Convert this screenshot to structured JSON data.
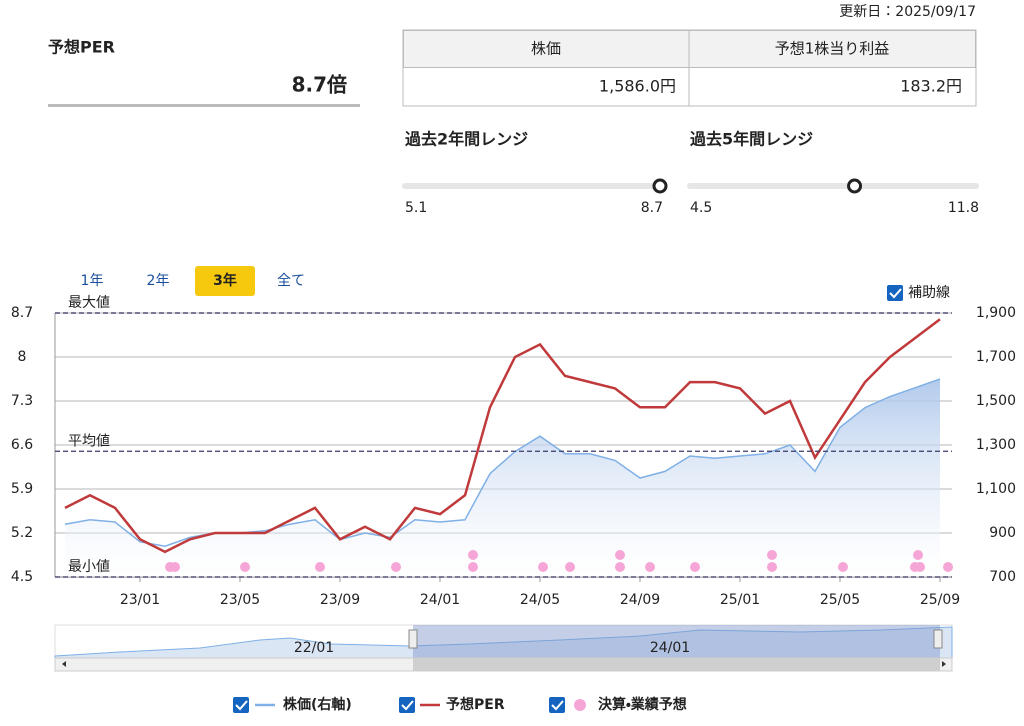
{
  "header": {
    "updated": "更新日：2025/09/17",
    "per_label": "予想PER",
    "per": {
      "value": 8.7,
      "label": "8.7倍"
    },
    "table": {
      "headers": [
        "株価",
        "予想1株当り利益"
      ],
      "values": [
        "1,586.0円",
        "183.2円"
      ]
    },
    "ranges": [
      {
        "title": "過去2年間レンジ",
        "low": 5.1,
        "high": 8.7
      },
      {
        "title": "過去5年間レンジ",
        "low": 4.5,
        "high": 11.8
      }
    ]
  },
  "tabs": [
    "1年",
    "2年",
    "3年",
    "全て"
  ],
  "aux_toggle": "補助線",
  "chart_data": {
    "type": "line",
    "x": [
      null,
      null,
      null,
      "23/01",
      null,
      null,
      null,
      "23/05",
      null,
      null,
      null,
      "23/09",
      null,
      null,
      null,
      "24/01",
      null,
      null,
      null,
      "24/05",
      null,
      null,
      null,
      "24/09",
      null,
      null,
      null,
      "25/01",
      null,
      null,
      null,
      "25/05",
      null,
      null,
      null,
      "25/09"
    ],
    "series": [
      {
        "name": "株価(右軸)",
        "color": "#7fb0e6",
        "axis": "y2",
        "values": [
          940,
          960,
          950,
          860,
          840,
          880,
          900,
          900,
          910,
          940,
          960,
          870,
          900,
          880,
          960,
          950,
          960,
          1170,
          1270,
          1340,
          1260,
          1260,
          1230,
          1150,
          1180,
          1250,
          1240,
          1250,
          1260,
          1300,
          1180,
          1380,
          1470,
          1520,
          1560,
          1600
        ]
      },
      {
        "name": "予想PER",
        "color": "#c0393b",
        "values": [
          5.6,
          5.8,
          5.6,
          5.1,
          4.9,
          5.1,
          5.2,
          5.2,
          5.2,
          5.4,
          5.6,
          5.1,
          5.3,
          5.1,
          5.6,
          5.5,
          5.8,
          7.2,
          8.0,
          8.2,
          7.7,
          7.6,
          7.5,
          7.2,
          7.2,
          7.6,
          7.6,
          7.5,
          7.1,
          7.3,
          6.4,
          7.0,
          7.6,
          8.0,
          8.3,
          8.6
        ]
      }
    ],
    "event_legend": "決算・業績予想",
    "ylim": [
      4.5,
      8.7
    ],
    "yticks": [
      4.5,
      5.2,
      5.9,
      6.6,
      7.3,
      8,
      8.7
    ],
    "y2lim": [
      700,
      1900
    ],
    "y2ticks": [
      700,
      900,
      {
        "value": 1100,
        "label": "1,100"
      },
      {
        "value": 1300,
        "label": "1,300"
      },
      {
        "value": 1500,
        "label": "1,500"
      },
      {
        "value": 1700,
        "label": "1,700"
      },
      {
        "value": 1900,
        "label": "1,900"
      }
    ],
    "ref_lines": [
      {
        "label": "最大値",
        "value": 8.7
      },
      {
        "label": "平均値",
        "value": 6.5
      },
      {
        "label": "最小値",
        "value": 4.5
      }
    ],
    "grid": true
  },
  "navigator": {
    "labels": [
      "22/01",
      "24/01"
    ]
  }
}
